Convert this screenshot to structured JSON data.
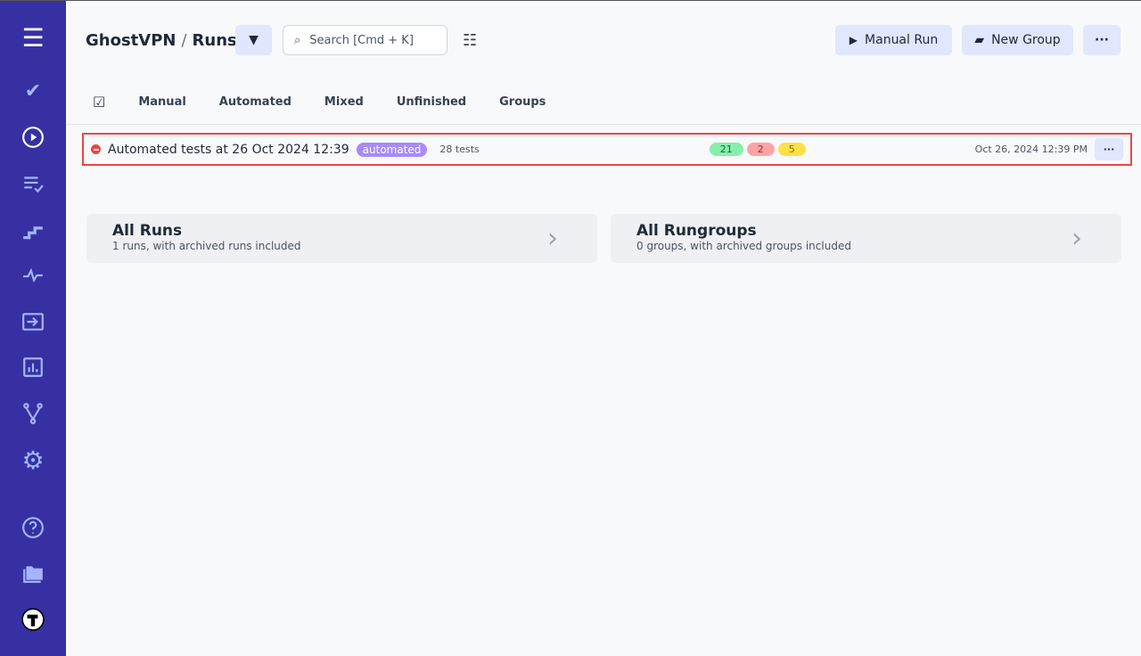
{
  "breadcrumb": {
    "project": "GhostVPN",
    "separator": "/",
    "page": "Runs"
  },
  "search": {
    "placeholder": "Search [Cmd + K]"
  },
  "header": {
    "manual_run": "Manual Run",
    "new_group": "New Group",
    "more": "···"
  },
  "tabs": [
    "Manual",
    "Automated",
    "Mixed",
    "Unfinished",
    "Groups"
  ],
  "run": {
    "title": "Automated tests at 26 Oct 2024 12:39",
    "badge": "automated",
    "tests": "28 tests",
    "passed": "21",
    "failed": "2",
    "skipped": "5",
    "date": "Oct 26, 2024 12:39 PM",
    "more": "···"
  },
  "cards": [
    {
      "title": "All Runs",
      "subtitle": "1 runs, with archived runs included"
    },
    {
      "title": "All Rungroups",
      "subtitle": "0 groups, with archived groups included"
    }
  ],
  "colors": {
    "sidebar": "#3730a3",
    "accent": "#e0e7ff",
    "badge": "#a78bfa",
    "passed": "#86efac",
    "failed": "#fca5a5",
    "skipped": "#fde047"
  }
}
